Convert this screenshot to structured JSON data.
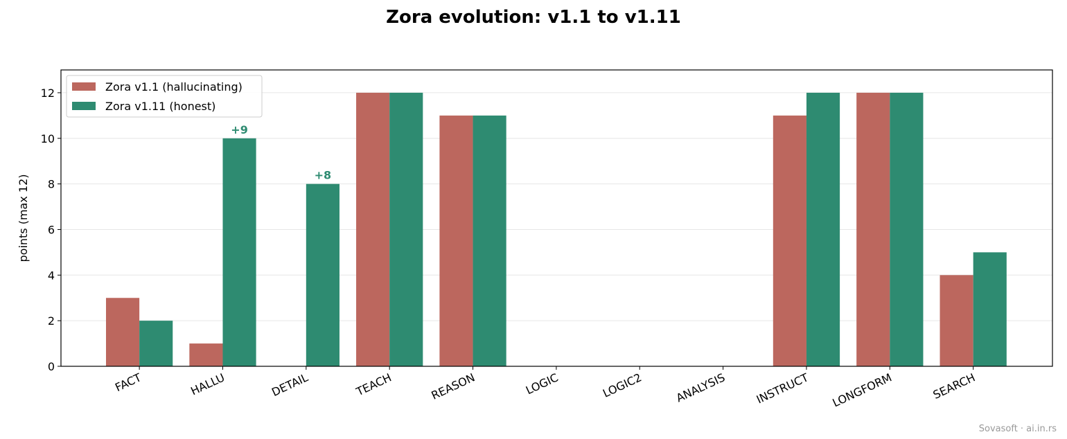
{
  "chart_data": {
    "type": "bar",
    "title": "Zora evolution: v1.1 to v1.11",
    "y_label": "points (max 12)",
    "categories": [
      "FACT",
      "HALLU",
      "DETAIL",
      "TEACH",
      "REASON",
      "LOGIC",
      "LOGIC2",
      "ANALYSIS",
      "INSTRUCT",
      "LONGFORM",
      "SEARCH"
    ],
    "series": [
      {
        "name": "Zora v1.1 (hallucinating)",
        "color": "#bc675e",
        "values": [
          3,
          1,
          0,
          12,
          11,
          0,
          0,
          0,
          11,
          12,
          4
        ]
      },
      {
        "name": "Zora v1.11 (honest)",
        "color": "#2e8b71",
        "values": [
          2,
          10,
          8,
          12,
          11,
          0,
          0,
          0,
          12,
          12,
          5
        ]
      }
    ],
    "annotations": [
      {
        "text": "+9",
        "category": "HALLU",
        "color": "#2e8b71"
      },
      {
        "text": "+8",
        "category": "DETAIL",
        "color": "#2e8b71"
      }
    ],
    "ylim": [
      0,
      13
    ],
    "yticks": [
      0,
      2,
      4,
      6,
      8,
      10,
      12
    ],
    "grid": true,
    "legend": "upper-left",
    "footer": "Sovasoft · ai.in.rs"
  }
}
